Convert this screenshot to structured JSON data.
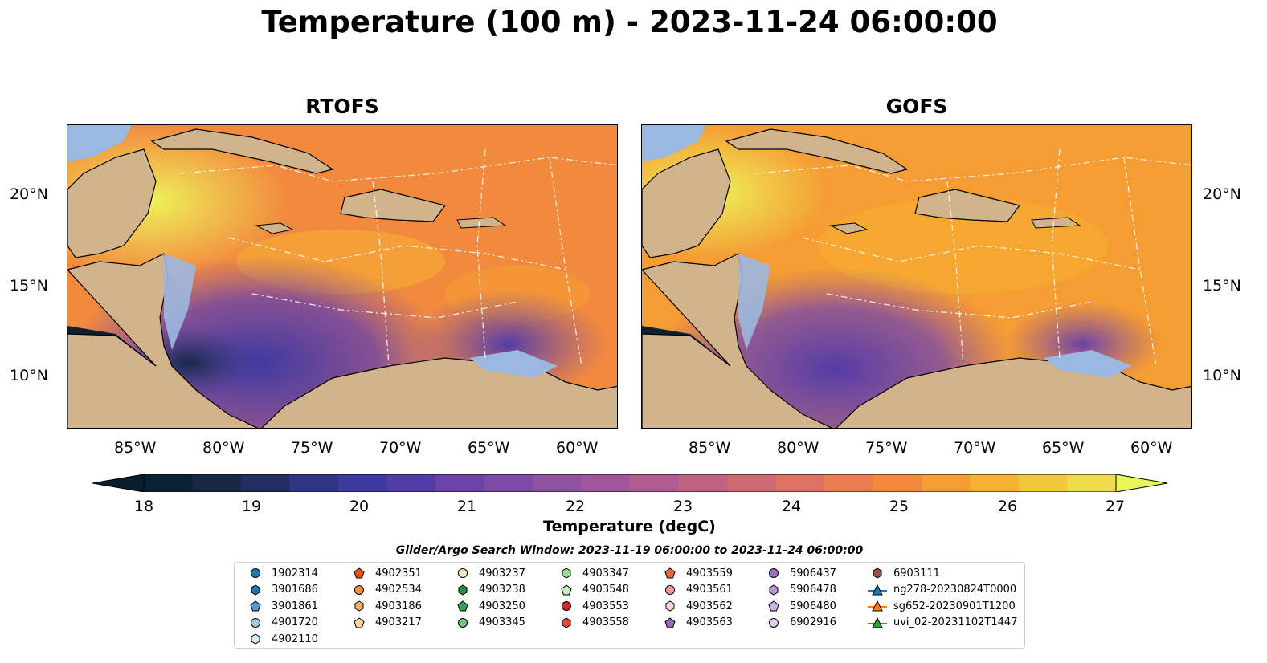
{
  "title": "Temperature (100 m) - 2023-11-24 06:00:00",
  "panels": [
    {
      "title": "RTOFS"
    },
    {
      "title": "GOFS"
    }
  ],
  "axes": {
    "lon_ticks": [
      "85°W",
      "80°W",
      "75°W",
      "70°W",
      "65°W",
      "60°W"
    ],
    "lat_ticks": [
      "20°N",
      "15°N",
      "10°N"
    ]
  },
  "colorbar": {
    "label": "Temperature (degC)",
    "ticks": [
      "18",
      "19",
      "20",
      "21",
      "22",
      "23",
      "24",
      "25",
      "26",
      "27"
    ],
    "colors": [
      "#0b2233",
      "#172845",
      "#222e63",
      "#2f3585",
      "#3e39a0",
      "#533ca7",
      "#6a42a8",
      "#7c4aa6",
      "#8e52a1",
      "#a05799",
      "#b05c8e",
      "#c06383",
      "#cf6a74",
      "#dd7263",
      "#e97d50",
      "#f28a3e",
      "#f59c33",
      "#f5b131",
      "#f2c63a",
      "#eedc4a"
    ],
    "under_color": "#071e2b",
    "over_color": "#e9f65a"
  },
  "search_window": "Glider/Argo Search Window: 2023-11-19 06:00:00 to 2023-11-24 06:00:00",
  "legend": {
    "items": [
      {
        "label": "1902314",
        "marker": "circle",
        "color": "#1f77b4"
      },
      {
        "label": "3901686",
        "marker": "hexagon",
        "color": "#1f77b4"
      },
      {
        "label": "3901861",
        "marker": "pentagon",
        "color": "#4f9bd8"
      },
      {
        "label": "4901720",
        "marker": "circle",
        "color": "#9ecae1"
      },
      {
        "label": "4902110",
        "marker": "hexagon",
        "color": "#deebf7"
      },
      {
        "label": "4902351",
        "marker": "pentagon",
        "color": "#e6550d"
      },
      {
        "label": "4902534",
        "marker": "circle",
        "color": "#fd8d3c"
      },
      {
        "label": "4903186",
        "marker": "hexagon",
        "color": "#fdae6b"
      },
      {
        "label": "4903217",
        "marker": "pentagon",
        "color": "#fdd0a2"
      },
      {
        "label": "4903237",
        "marker": "circle",
        "color": "#fee6ce"
      },
      {
        "label": "4903238",
        "marker": "hexagon",
        "color": "#238b45"
      },
      {
        "label": "4903250",
        "marker": "pentagon",
        "color": "#31a354"
      },
      {
        "label": "4903345",
        "marker": "circle",
        "color": "#74c476"
      },
      {
        "label": "4903347",
        "marker": "hexagon",
        "color": "#a1d99b"
      },
      {
        "label": "4903548",
        "marker": "pentagon",
        "color": "#c7e9c0"
      },
      {
        "label": "4903553",
        "marker": "circle",
        "color": "#d62728"
      },
      {
        "label": "4903558",
        "marker": "hexagon",
        "color": "#e34a33"
      },
      {
        "label": "4903559",
        "marker": "pentagon",
        "color": "#ef6548"
      },
      {
        "label": "4903561",
        "marker": "circle",
        "color": "#f4a09a"
      },
      {
        "label": "4903562",
        "marker": "hexagon",
        "color": "#fcd1d1"
      },
      {
        "label": "4903563",
        "marker": "pentagon",
        "color": "#9467bd"
      },
      {
        "label": "5906437",
        "marker": "circle",
        "color": "#9e6fc4"
      },
      {
        "label": "5906478",
        "marker": "hexagon",
        "color": "#b794d6"
      },
      {
        "label": "5906480",
        "marker": "pentagon",
        "color": "#cdb4e6"
      },
      {
        "label": "6902916",
        "marker": "circle",
        "color": "#e6c8f2"
      },
      {
        "label": "6903111",
        "marker": "hexagon",
        "color": "#8c564b"
      },
      {
        "label": "ng278-20230824T0000",
        "marker": "triangle-line",
        "color": "#1f77b4"
      },
      {
        "label": "sg652-20230901T1200",
        "marker": "triangle-line",
        "color": "#ff7f0e"
      },
      {
        "label": "uvi_02-20231102T1447",
        "marker": "triangle-line",
        "color": "#2ca02c"
      }
    ]
  }
}
